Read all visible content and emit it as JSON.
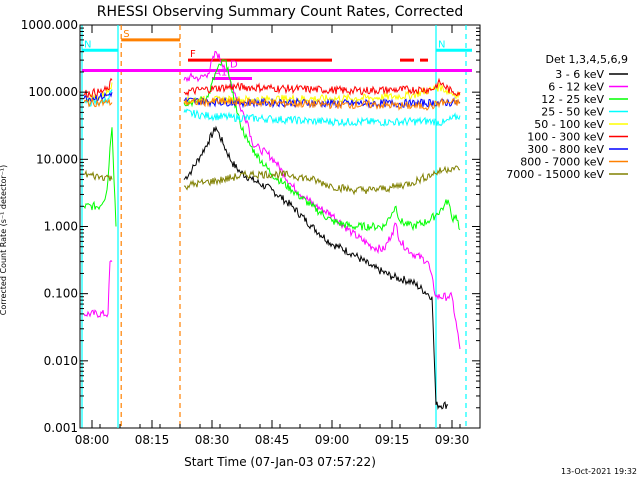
{
  "chart_data": {
    "type": "line",
    "title": "RHESSI Observing Summary Count Rates, Corrected",
    "xlabel": "Start Time (07-Jan-03 07:57:22)",
    "ylabel": "Corrected Count Rate (s⁻¹ detector⁻¹)",
    "yscale": "log",
    "ylim": [
      0.001,
      1000
    ],
    "xlim_minutes": [
      -3,
      97
    ],
    "xticks": [
      {
        "t": 0,
        "label": "08:00"
      },
      {
        "t": 15,
        "label": "08:15"
      },
      {
        "t": 30,
        "label": "08:30"
      },
      {
        "t": 45,
        "label": "08:45"
      },
      {
        "t": 60,
        "label": "09:00"
      },
      {
        "t": 75,
        "label": "09:15"
      },
      {
        "t": 90,
        "label": "09:30"
      }
    ],
    "yticks": [
      {
        "v": 1000,
        "label": "1000.000"
      },
      {
        "v": 100,
        "label": "100.000"
      },
      {
        "v": 10,
        "label": "10.000"
      },
      {
        "v": 1,
        "label": "1.000"
      },
      {
        "v": 0.1,
        "label": "0.100"
      },
      {
        "v": 0.01,
        "label": "0.010"
      },
      {
        "v": 0.001,
        "label": "0.001"
      }
    ],
    "legend_title": "Det 1,3,4,5,6,9",
    "legend_position": "right",
    "series": [
      {
        "name": "3 - 6 keV",
        "color": "#000000",
        "points": [
          [
            23,
            5
          ],
          [
            25,
            7
          ],
          [
            27,
            11
          ],
          [
            29,
            18
          ],
          [
            31,
            30
          ],
          [
            33,
            16
          ],
          [
            35,
            9
          ],
          [
            37,
            6.5
          ],
          [
            40,
            5
          ],
          [
            45,
            3.5
          ],
          [
            50,
            2
          ],
          [
            55,
            1
          ],
          [
            60,
            0.55
          ],
          [
            65,
            0.4
          ],
          [
            70,
            0.25
          ],
          [
            75,
            0.18
          ],
          [
            80,
            0.15
          ],
          [
            85,
            0.09
          ],
          [
            86,
            0.0022
          ],
          [
            89,
            0.0022
          ]
        ]
      },
      {
        "name": "6 - 12 keV",
        "color": "#ff00ff",
        "points": [
          [
            -2,
            0.05
          ],
          [
            4,
            0.05
          ],
          [
            4.5,
            0.3
          ],
          [
            5,
            0.3
          ],
          [
            23,
            150
          ],
          [
            25,
            170
          ],
          [
            27,
            160
          ],
          [
            29,
            190
          ],
          [
            31,
            400
          ],
          [
            33,
            250
          ],
          [
            35,
            130
          ],
          [
            37,
            60
          ],
          [
            39,
            35
          ],
          [
            40,
            18
          ],
          [
            42,
            14
          ],
          [
            44,
            12
          ],
          [
            46,
            9
          ],
          [
            48,
            6
          ],
          [
            50,
            4
          ],
          [
            53,
            2.8
          ],
          [
            56,
            2
          ],
          [
            60,
            1.5
          ],
          [
            65,
            0.8
          ],
          [
            70,
            0.5
          ],
          [
            73,
            0.45
          ],
          [
            75,
            0.8
          ],
          [
            76,
            1.1
          ],
          [
            77,
            0.6
          ],
          [
            80,
            0.4
          ],
          [
            84,
            0.3
          ],
          [
            86,
            0.09
          ],
          [
            89,
            0.09
          ],
          [
            90,
            0.09
          ],
          [
            92,
            0.015
          ]
        ]
      },
      {
        "name": "12 - 25 keV",
        "color": "#00ff00",
        "points": [
          [
            -2,
            2
          ],
          [
            2,
            2
          ],
          [
            3.5,
            3
          ],
          [
            4,
            5
          ],
          [
            4.5,
            15
          ],
          [
            5,
            30
          ],
          [
            6,
            1
          ],
          [
            23,
            70
          ],
          [
            26,
            72
          ],
          [
            29,
            85
          ],
          [
            31,
            200
          ],
          [
            33,
            300
          ],
          [
            34,
            230
          ],
          [
            35,
            100
          ],
          [
            37,
            35
          ],
          [
            39,
            18
          ],
          [
            41,
            12
          ],
          [
            45,
            6
          ],
          [
            50,
            3.5
          ],
          [
            55,
            2
          ],
          [
            60,
            1.2
          ],
          [
            65,
            1
          ],
          [
            70,
            1
          ],
          [
            73,
            1
          ],
          [
            75,
            1.6
          ],
          [
            76,
            2
          ],
          [
            77,
            1.2
          ],
          [
            80,
            1
          ],
          [
            84,
            1.2
          ],
          [
            86,
            1.5
          ],
          [
            88,
            2
          ],
          [
            89,
            2.5
          ],
          [
            90,
            1.3
          ],
          [
            91,
            1.5
          ],
          [
            92,
            0.9
          ]
        ]
      },
      {
        "name": "25 - 50 keV",
        "color": "#00ffff",
        "points": [
          [
            -2,
            70
          ],
          [
            2,
            70
          ],
          [
            4,
            80
          ],
          [
            5,
            110
          ],
          [
            23,
            50
          ],
          [
            28,
            45
          ],
          [
            35,
            42
          ],
          [
            45,
            40
          ],
          [
            55,
            37
          ],
          [
            65,
            36
          ],
          [
            75,
            36
          ],
          [
            85,
            37
          ],
          [
            88,
            35
          ],
          [
            92,
            45
          ]
        ]
      },
      {
        "name": "50 - 100 keV",
        "color": "#ffff00",
        "points": [
          [
            -2,
            80
          ],
          [
            2,
            85
          ],
          [
            4,
            100
          ],
          [
            5,
            140
          ],
          [
            23,
            75
          ],
          [
            30,
            76
          ],
          [
            40,
            78
          ],
          [
            50,
            80
          ],
          [
            60,
            80
          ],
          [
            70,
            82
          ],
          [
            80,
            90
          ],
          [
            85,
            110
          ],
          [
            87,
            120
          ],
          [
            90,
            95
          ],
          [
            92,
            90
          ]
        ]
      },
      {
        "name": "100 - 300 keV",
        "color": "#ff0000",
        "points": [
          [
            -2,
            95
          ],
          [
            2,
            100
          ],
          [
            4,
            110
          ],
          [
            5,
            150
          ],
          [
            23,
            100
          ],
          [
            28,
            110
          ],
          [
            35,
            120
          ],
          [
            45,
            115
          ],
          [
            55,
            110
          ],
          [
            65,
            105
          ],
          [
            75,
            108
          ],
          [
            85,
            110
          ],
          [
            87,
            140
          ],
          [
            90,
            100
          ],
          [
            92,
            100
          ]
        ]
      },
      {
        "name": "300 - 800 keV",
        "color": "#0000ff",
        "points": [
          [
            -2,
            80
          ],
          [
            2,
            85
          ],
          [
            4,
            90
          ],
          [
            5,
            100
          ],
          [
            23,
            75
          ],
          [
            30,
            72
          ],
          [
            40,
            70
          ],
          [
            50,
            70
          ],
          [
            60,
            68
          ],
          [
            70,
            68
          ],
          [
            80,
            68
          ],
          [
            87,
            70
          ],
          [
            92,
            70
          ]
        ]
      },
      {
        "name": "800 - 7000 keV",
        "color": "#ff8000",
        "points": [
          [
            -2,
            70
          ],
          [
            2,
            70
          ],
          [
            4,
            70
          ],
          [
            5,
            70
          ],
          [
            23,
            70
          ],
          [
            30,
            72
          ],
          [
            40,
            70
          ],
          [
            50,
            68
          ],
          [
            60,
            65
          ],
          [
            70,
            65
          ],
          [
            80,
            62
          ],
          [
            85,
            62
          ],
          [
            87,
            70
          ],
          [
            92,
            70
          ]
        ]
      },
      {
        "name": "7000 - 15000 keV",
        "color": "#808000",
        "points": [
          [
            -2,
            6
          ],
          [
            2,
            5.5
          ],
          [
            4,
            5.5
          ],
          [
            5,
            5
          ],
          [
            23,
            4
          ],
          [
            28,
            4.5
          ],
          [
            33,
            5
          ],
          [
            36,
            5.5
          ],
          [
            40,
            6
          ],
          [
            45,
            6
          ],
          [
            50,
            5.8
          ],
          [
            55,
            5
          ],
          [
            60,
            4
          ],
          [
            65,
            3.5
          ],
          [
            70,
            3.5
          ],
          [
            75,
            3.8
          ],
          [
            80,
            4.5
          ],
          [
            85,
            6
          ],
          [
            88,
            7
          ],
          [
            90,
            7.5
          ],
          [
            92,
            7
          ]
        ]
      }
    ],
    "vertical_lines": [
      {
        "t": -2.5,
        "color": "#00ffff",
        "style": "solid"
      },
      {
        "t": 6.5,
        "color": "#00ffff",
        "style": "solid"
      },
      {
        "t": 7.3,
        "color": "#ff8000",
        "style": "dashed"
      },
      {
        "t": 22,
        "color": "#ff8000",
        "style": "dashed"
      },
      {
        "t": 86,
        "color": "#00ffff",
        "style": "solid"
      },
      {
        "t": 93.5,
        "color": "#00ffff",
        "style": "dashed"
      }
    ],
    "flag_bars": [
      {
        "label": "S",
        "color": "#ff8000",
        "t1": 7.3,
        "t2": 22,
        "v": 600
      },
      {
        "label": "N",
        "color": "#00ffff",
        "t1": -2.5,
        "t2": 6.5,
        "v": 420
      },
      {
        "label": "N",
        "color": "#00ffff",
        "t1": 86,
        "t2": 95,
        "v": 420
      },
      {
        "label": "F",
        "color": "#ff0000",
        "t1": 24,
        "t2": 60,
        "v": 300
      },
      {
        "label": "",
        "color": "#ff0000",
        "t1": 77,
        "t2": 80.5,
        "v": 300
      },
      {
        "label": "",
        "color": "#ff0000",
        "t1": 82,
        "t2": 84,
        "v": 300
      },
      {
        "label": "",
        "color": "#ff00ff",
        "t1": -2.5,
        "t2": 95,
        "v": 210
      },
      {
        "label": "D",
        "color": "#ff00ff",
        "t1": 34,
        "t2": 37,
        "v": 210
      },
      {
        "label": "A1",
        "color": "#ff00ff",
        "t1": 30,
        "t2": 40,
        "v": 160
      },
      {
        "label": "",
        "color": "#ff00ff",
        "t1": 41,
        "t2": 41.8,
        "v": 210
      }
    ]
  },
  "footer_date": "13-Oct-2021 19:32"
}
